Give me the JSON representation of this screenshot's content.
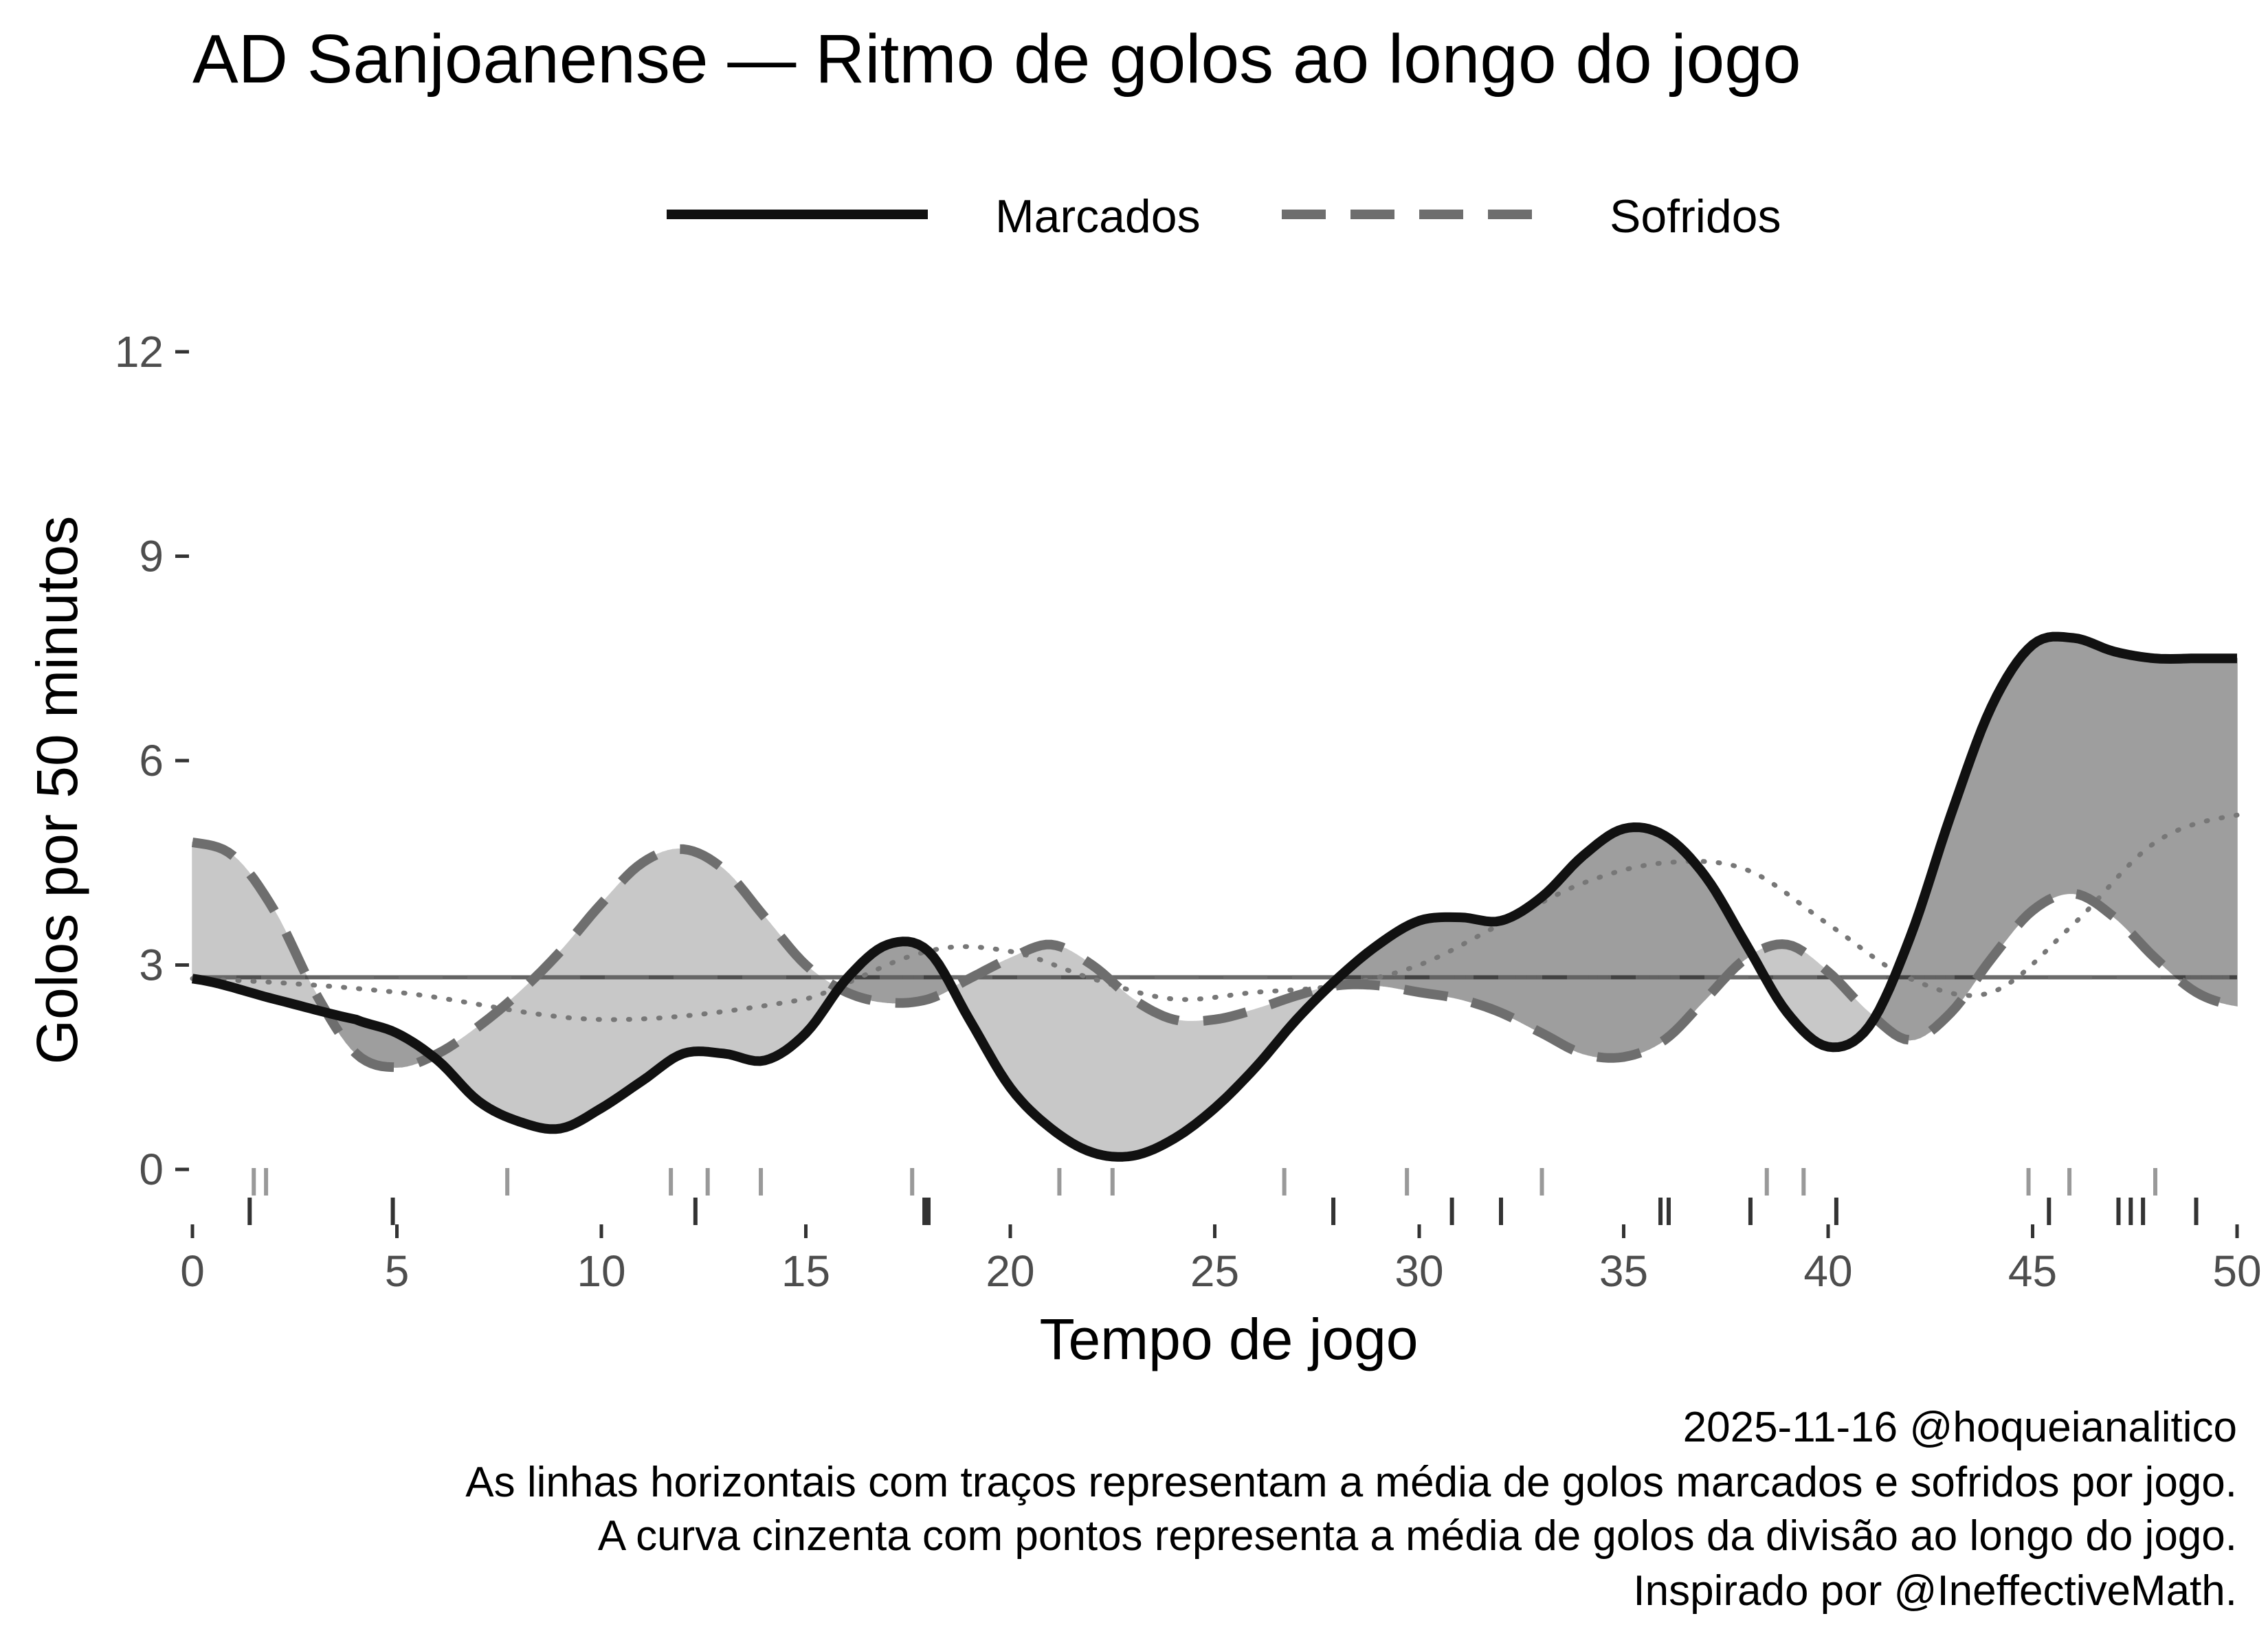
{
  "chart_data": {
    "type": "line",
    "title": "AD Sanjoanense — Ritmo de golos ao longo do jogo",
    "xlabel": "Tempo de jogo",
    "ylabel": "Golos por 50 minutos",
    "xlim": [
      0,
      50
    ],
    "ylim": [
      0,
      12
    ],
    "x_ticks": [
      0,
      5,
      10,
      15,
      20,
      25,
      30,
      35,
      40,
      45,
      50
    ],
    "y_ticks": [
      0,
      3,
      6,
      9,
      12
    ],
    "legend": {
      "position": "top"
    },
    "grid": false,
    "series": [
      {
        "name": "Marcados",
        "style": "solid",
        "color": "#111111",
        "x": [
          0,
          2,
          4,
          5,
          6,
          7,
          8,
          9,
          10,
          11,
          12,
          13,
          14,
          15,
          16,
          17,
          18,
          19,
          20,
          21,
          22,
          23,
          24,
          25,
          26,
          27,
          28,
          29,
          30,
          31,
          32,
          33,
          34,
          35,
          36,
          37,
          38,
          39,
          40,
          41,
          42,
          43,
          44,
          45,
          46,
          47,
          48,
          49,
          50
        ],
        "values": [
          2.8,
          2.5,
          2.2,
          2.0,
          1.6,
          1.0,
          0.7,
          0.6,
          0.9,
          1.3,
          1.7,
          1.7,
          1.6,
          2.0,
          2.8,
          3.3,
          3.2,
          2.2,
          1.2,
          0.6,
          0.25,
          0.2,
          0.45,
          0.9,
          1.5,
          2.2,
          2.8,
          3.3,
          3.65,
          3.7,
          3.65,
          4.0,
          4.6,
          5.0,
          4.9,
          4.3,
          3.3,
          2.3,
          1.8,
          2.1,
          3.4,
          5.2,
          6.8,
          7.7,
          7.8,
          7.6,
          7.5,
          7.5,
          7.5
        ]
      },
      {
        "name": "Sofridos",
        "style": "dashed",
        "color": "#6e6e6e",
        "x": [
          0,
          1,
          2,
          3,
          4,
          5,
          6,
          7,
          8,
          9,
          10,
          11,
          12,
          13,
          14,
          15,
          16,
          17,
          18,
          19,
          20,
          21,
          22,
          23,
          24,
          25,
          26,
          27,
          28,
          29,
          30,
          31,
          32,
          33,
          34,
          35,
          36,
          37,
          38,
          39,
          40,
          41,
          42,
          43,
          44,
          45,
          46,
          47,
          48,
          49,
          50
        ],
        "values": [
          4.8,
          4.6,
          3.8,
          2.6,
          1.7,
          1.5,
          1.7,
          2.1,
          2.6,
          3.2,
          3.9,
          4.5,
          4.7,
          4.4,
          3.7,
          3.0,
          2.6,
          2.45,
          2.5,
          2.8,
          3.1,
          3.3,
          3.0,
          2.5,
          2.2,
          2.2,
          2.35,
          2.55,
          2.7,
          2.7,
          2.6,
          2.5,
          2.3,
          2.0,
          1.7,
          1.65,
          1.9,
          2.5,
          3.1,
          3.3,
          2.9,
          2.3,
          1.9,
          2.3,
          3.1,
          3.8,
          4.05,
          3.7,
          3.1,
          2.6,
          2.4
        ]
      },
      {
        "name": "Média da divisão",
        "style": "dotted",
        "color": "#777777",
        "x": [
          0,
          5,
          10,
          15,
          18,
          20,
          22,
          24,
          26,
          28,
          30,
          32,
          34,
          36,
          38,
          40,
          42,
          44,
          46,
          48,
          50
        ],
        "values": [
          2.8,
          2.6,
          2.2,
          2.5,
          3.2,
          3.2,
          2.8,
          2.5,
          2.6,
          2.7,
          3.0,
          3.6,
          4.2,
          4.5,
          4.4,
          3.6,
          2.8,
          2.6,
          3.6,
          4.8,
          5.2
        ]
      }
    ],
    "reference_lines": [
      {
        "name": "Média golos marcados por jogo",
        "y": 2.82,
        "style": "dashed"
      },
      {
        "name": "Média golos sofridos por jogo",
        "y": 2.82,
        "style": "dashed"
      }
    ],
    "rug_marcados": [
      1.4,
      4.9,
      12.3,
      17.9,
      18.0,
      27.9,
      30.8,
      32.0,
      35.9,
      36.1,
      38.1,
      40.2,
      45.4,
      47.1,
      47.4,
      47.7,
      49.0
    ],
    "rug_sofridos": [
      1.5,
      1.8,
      7.7,
      11.7,
      12.6,
      13.9,
      17.6,
      21.2,
      22.5,
      26.7,
      29.7,
      33.0,
      38.5,
      39.4,
      44.9,
      45.9,
      48.0
    ],
    "annotations": {
      "caption_lines": [
        "2025-11-16 @hoqueianalitico",
        "As linhas horizontais com traços representam a média de golos marcados e sofridos por jogo.",
        "A curva cinzenta com pontos representa a média de golos da divisão ao longo do jogo.",
        "Inspirado por @IneffectiveMath."
      ]
    }
  },
  "colors": {
    "fill_marcados_above": "#9e9e9e",
    "fill_sofridos_above": "#c8c8c8",
    "tick": "#333333",
    "rug_marcados": "#333333",
    "rug_sofridos": "#999999"
  }
}
